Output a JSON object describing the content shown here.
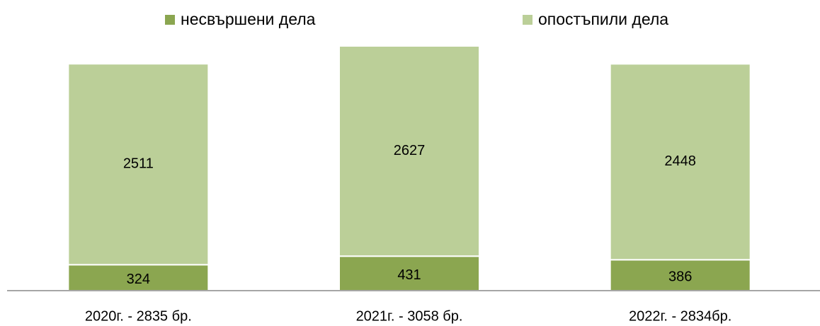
{
  "chart_data": {
    "type": "stacked-bar",
    "categories": [
      "2020г. - 2835 бр.",
      "2021г. - 3058 бр.",
      "2022г. - 2834бр."
    ],
    "series": [
      {
        "name": "несвършени дела",
        "color": "#8ba650",
        "values": [
          324,
          431,
          386
        ]
      },
      {
        "name": "опостъпили дела",
        "color": "#bbcf98",
        "values": [
          2511,
          2627,
          2448
        ]
      }
    ],
    "legend": "top"
  }
}
